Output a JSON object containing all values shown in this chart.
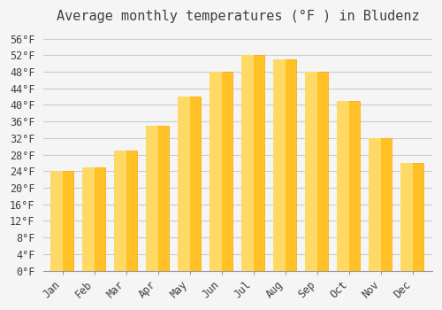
{
  "title": "Average monthly temperatures (°F ) in Bludenz",
  "months": [
    "Jan",
    "Feb",
    "Mar",
    "Apr",
    "May",
    "Jun",
    "Jul",
    "Aug",
    "Sep",
    "Oct",
    "Nov",
    "Dec"
  ],
  "values": [
    24,
    25,
    29,
    35,
    42,
    48,
    52,
    51,
    48,
    41,
    32,
    26
  ],
  "bar_color_top": "#FFC125",
  "bar_color_bottom": "#FFD966",
  "background_color": "#F5F5F5",
  "grid_color": "#CCCCCC",
  "text_color": "#404040",
  "ylim_min": 0,
  "ylim_max": 58,
  "ytick_step": 4,
  "title_fontsize": 11,
  "tick_fontsize": 8.5,
  "font_family": "monospace"
}
